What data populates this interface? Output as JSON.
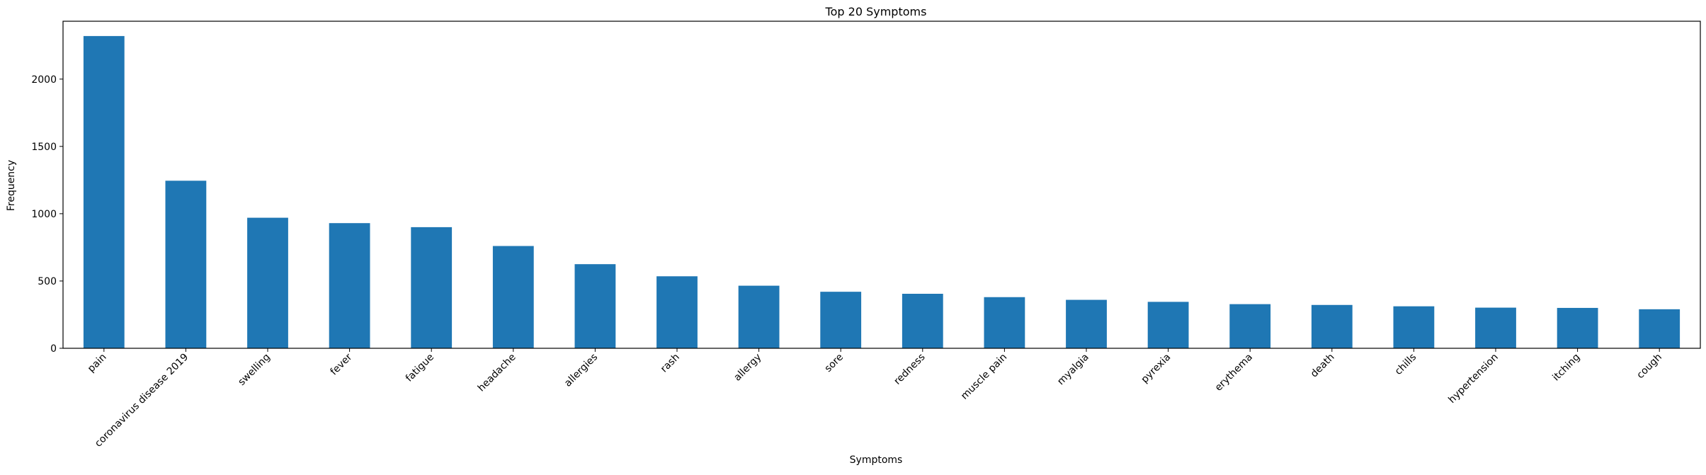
{
  "chart_data": {
    "type": "bar",
    "title": "Top 20 Symptoms",
    "xlabel": "Symptoms",
    "ylabel": "Frequency",
    "categories": [
      "pain",
      "coronavirus disease 2019",
      "swelling",
      "fever",
      "fatigue",
      "headache",
      "allergies",
      "rash",
      "allergy",
      "sore",
      "redness",
      "muscle pain",
      "myalgia",
      "pyrexia",
      "erythema",
      "death",
      "chills",
      "hypertension",
      "itching",
      "cough"
    ],
    "values": [
      2320,
      1245,
      970,
      930,
      900,
      760,
      625,
      535,
      465,
      420,
      405,
      380,
      360,
      345,
      328,
      322,
      312,
      302,
      300,
      290
    ],
    "ylim": [
      0,
      2430
    ],
    "yticks": [
      0,
      500,
      1000,
      1500,
      2000
    ],
    "grid": false,
    "legend": "none",
    "bar_color": "#1f77b4"
  }
}
